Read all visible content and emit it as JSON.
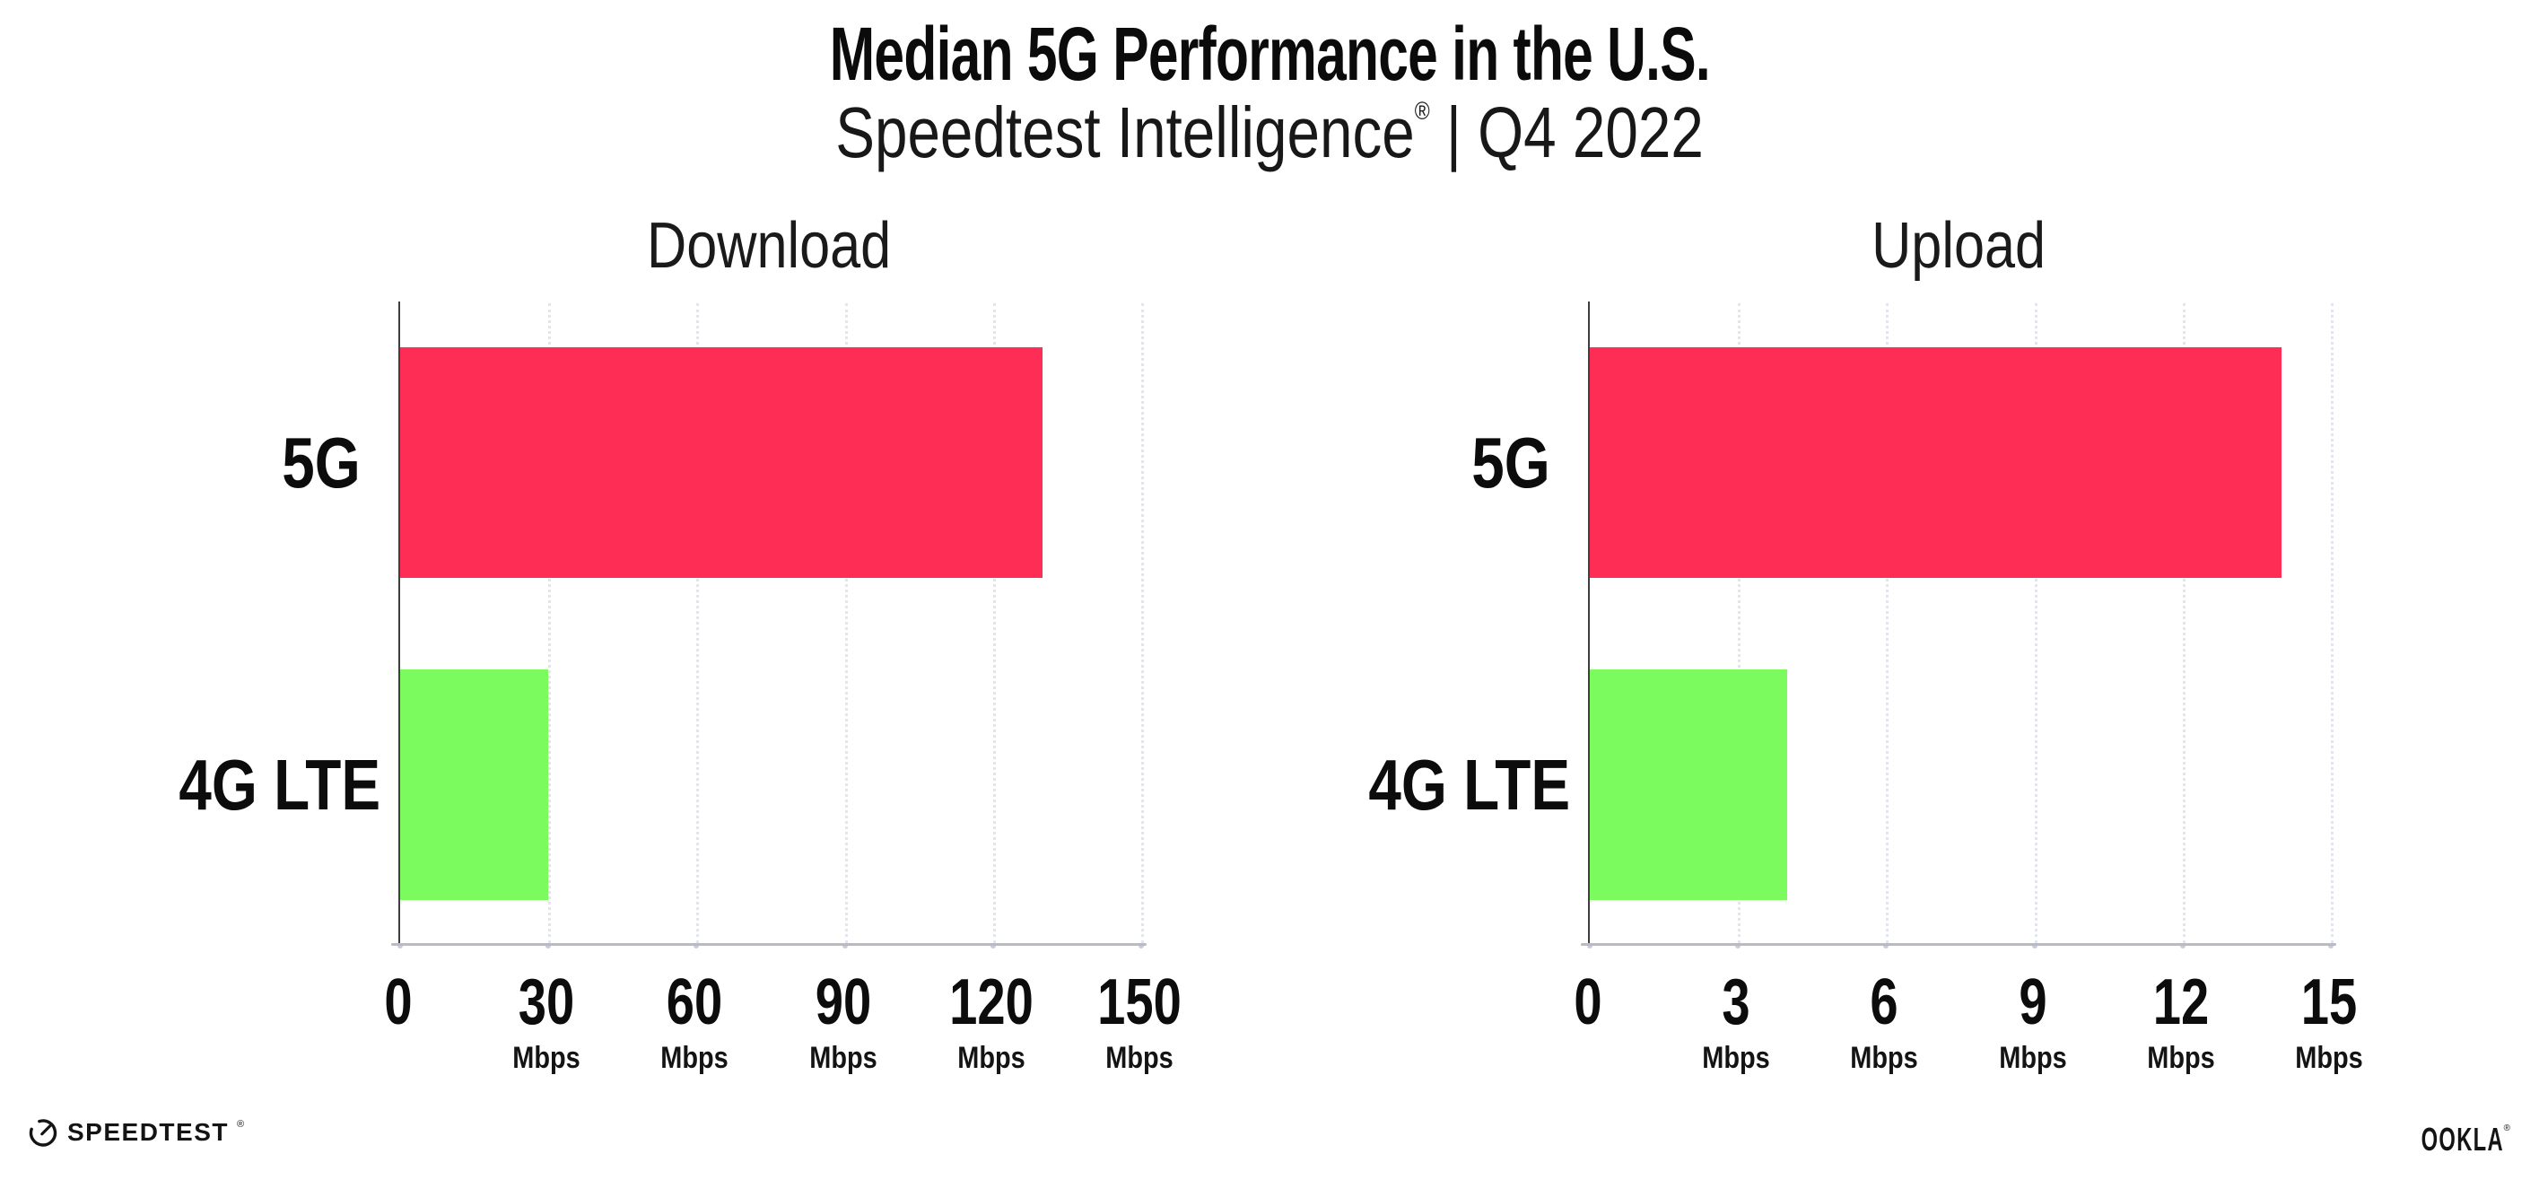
{
  "title": "Median 5G Performance in the U.S.",
  "subtitle": {
    "brand": "Speedtest Intelligence",
    "registered": "®",
    "rest": " | Q4 2022"
  },
  "footer": {
    "speedtest_label": "SPEEDTEST",
    "speedtest_registered": "®",
    "ookla_label": "OOKLA",
    "ookla_registered": "®"
  },
  "colors": {
    "bar_5g": "#FD2D55",
    "bar_4g_lte": "#7CFB5E",
    "gridline": "#E2E4EF",
    "y_axis_line": "#3F3F3F",
    "x_axis_line": "#B9BAC2",
    "text": "#0C0C0C"
  },
  "chart_data": [
    {
      "type": "bar",
      "orientation": "horizontal",
      "title": "Download",
      "categories": [
        "5G",
        "4G LTE"
      ],
      "values": [
        130,
        30
      ],
      "unit": "Mbps",
      "xlim": [
        0,
        150
      ],
      "xticks": [
        0,
        30,
        60,
        90,
        120,
        150
      ],
      "bar_colors": [
        "#FD2D55",
        "#7CFB5E"
      ],
      "grid": "dotted-vertical",
      "legend": "none"
    },
    {
      "type": "bar",
      "orientation": "horizontal",
      "title": "Upload",
      "categories": [
        "5G",
        "4G LTE"
      ],
      "values": [
        14,
        4
      ],
      "unit": "Mbps",
      "xlim": [
        0,
        15
      ],
      "xticks": [
        0,
        3,
        6,
        9,
        12,
        15
      ],
      "bar_colors": [
        "#FD2D55",
        "#7CFB5E"
      ],
      "grid": "dotted-vertical",
      "legend": "none"
    }
  ]
}
